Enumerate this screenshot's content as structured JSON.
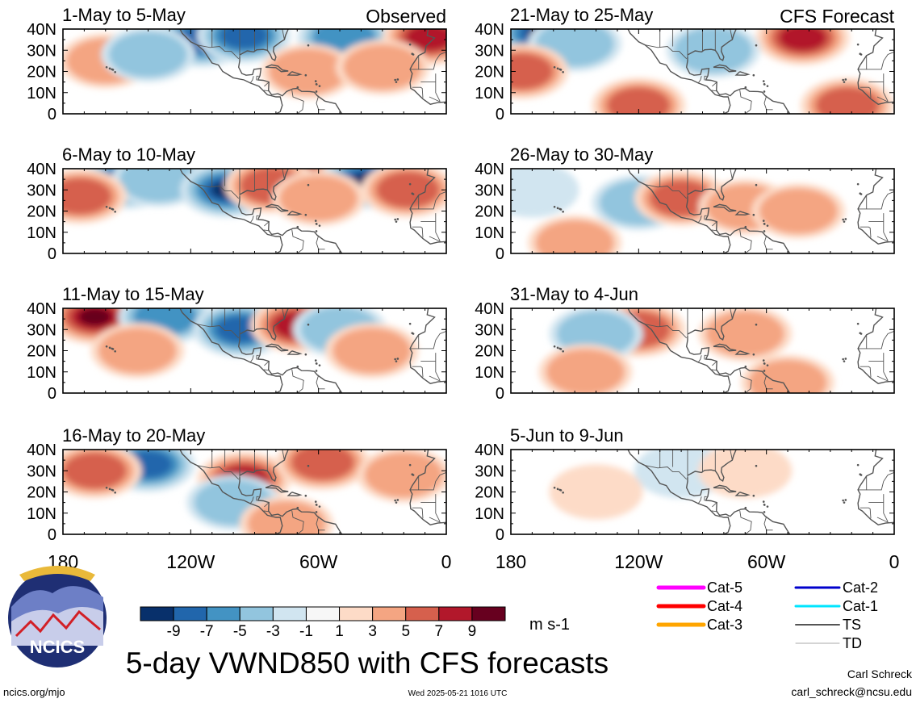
{
  "title": "5-day VWND850 with CFS forecasts",
  "unit": "m s-1",
  "logo_text": "NCICS",
  "footer": {
    "left": "ncics.org/mjo",
    "center": "Wed 2025-05-21 1016 UTC",
    "author": "Carl Schreck",
    "email": "carl_schreck@ncsu.edu"
  },
  "columns": {
    "left_tag": "Observed",
    "right_tag": "CFS Forecast"
  },
  "colors": {
    "land_outline": "#555555",
    "background": "#ffffff",
    "frame": "#000000"
  },
  "legend": {
    "items": [
      {
        "label": "Cat-5",
        "color": "#ff00ff",
        "weight": 5
      },
      {
        "label": "Cat-4",
        "color": "#ff0000",
        "weight": 5
      },
      {
        "label": "Cat-3",
        "color": "#ffa500",
        "weight": 5
      },
      {
        "label": "Cat-2",
        "color": "#0000cc",
        "weight": 3
      },
      {
        "label": "Cat-1",
        "color": "#00e5ff",
        "weight": 3
      },
      {
        "label": "TS",
        "color": "#555555",
        "weight": 2
      },
      {
        "label": "TD",
        "color": "#aaaaaa",
        "weight": 1
      }
    ]
  },
  "chart_data": {
    "type": "heatmap",
    "variable": "VWND850",
    "x_ticks": [
      "180",
      "120W",
      "60W",
      "0"
    ],
    "y_ticks": [
      "0",
      "10N",
      "20N",
      "30N",
      "40N"
    ],
    "xlim_lon": [
      -180,
      0
    ],
    "ylim_lat": [
      0,
      40
    ],
    "colorbar": {
      "levels": [
        -9,
        -7,
        -5,
        -3,
        -1,
        1,
        3,
        5,
        7,
        9
      ],
      "tick_labels": [
        "-9",
        "-7",
        "-5",
        "-3",
        "-1",
        "1",
        "3",
        "5",
        "7",
        "9"
      ],
      "colors": [
        "#08306b",
        "#2166ac",
        "#4393c3",
        "#92c5de",
        "#d1e5f0",
        "#f7f7f7",
        "#fddbc7",
        "#f4a582",
        "#d6604d",
        "#b2182b",
        "#67001f"
      ]
    },
    "panels": [
      {
        "label": "1-May to 5-May",
        "kind": "observed",
        "anomalies": [
          {
            "lon": -115,
            "lat": 35,
            "v": -7
          },
          {
            "lon": -95,
            "lat": 37,
            "v": -7
          },
          {
            "lon": -48,
            "lat": 36,
            "v": -5
          },
          {
            "lon": -8,
            "lat": 36,
            "v": 7
          },
          {
            "lon": -160,
            "lat": 25,
            "v": 3
          },
          {
            "lon": -140,
            "lat": 28,
            "v": -3
          },
          {
            "lon": -65,
            "lat": 20,
            "v": 3
          },
          {
            "lon": -30,
            "lat": 22,
            "v": 3
          }
        ]
      },
      {
        "label": "6-May to 10-May",
        "kind": "observed",
        "anomalies": [
          {
            "lon": -150,
            "lat": 34,
            "v": -7
          },
          {
            "lon": -135,
            "lat": 35,
            "v": -3
          },
          {
            "lon": -103,
            "lat": 30,
            "v": -9
          },
          {
            "lon": -75,
            "lat": 38,
            "v": 9
          },
          {
            "lon": -82,
            "lat": 32,
            "v": 5
          },
          {
            "lon": -38,
            "lat": 34,
            "v": -9
          },
          {
            "lon": -18,
            "lat": 30,
            "v": 5
          },
          {
            "lon": -172,
            "lat": 27,
            "v": 5
          },
          {
            "lon": -60,
            "lat": 26,
            "v": 3
          }
        ]
      },
      {
        "label": "11-May to 15-May",
        "kind": "observed",
        "anomalies": [
          {
            "lon": -165,
            "lat": 36,
            "v": 9
          },
          {
            "lon": -132,
            "lat": 36,
            "v": -5
          },
          {
            "lon": -97,
            "lat": 30,
            "v": -7
          },
          {
            "lon": -70,
            "lat": 32,
            "v": 7
          },
          {
            "lon": -50,
            "lat": 30,
            "v": -3
          },
          {
            "lon": -145,
            "lat": 20,
            "v": 3
          },
          {
            "lon": -35,
            "lat": 20,
            "v": 3
          }
        ]
      },
      {
        "label": "16-May to 20-May",
        "kind": "observed",
        "anomalies": [
          {
            "lon": -140,
            "lat": 33,
            "v": -7
          },
          {
            "lon": -95,
            "lat": 26,
            "v": 7
          },
          {
            "lon": -58,
            "lat": 34,
            "v": 5
          },
          {
            "lon": -100,
            "lat": 15,
            "v": -3
          },
          {
            "lon": -165,
            "lat": 30,
            "v": 5
          },
          {
            "lon": -20,
            "lat": 28,
            "v": 3
          },
          {
            "lon": -75,
            "lat": 5,
            "v": 3
          }
        ]
      },
      {
        "label": "21-May to 25-May",
        "kind": "forecast",
        "anomalies": [
          {
            "lon": -165,
            "lat": 38,
            "v": -9
          },
          {
            "lon": -150,
            "lat": 33,
            "v": -3
          },
          {
            "lon": -43,
            "lat": 36,
            "v": 7
          },
          {
            "lon": -175,
            "lat": 20,
            "v": 5
          },
          {
            "lon": -120,
            "lat": 4,
            "v": 5
          },
          {
            "lon": -85,
            "lat": 30,
            "v": -3
          },
          {
            "lon": -22,
            "lat": 4,
            "v": 5
          }
        ]
      },
      {
        "label": "26-May to 30-May",
        "kind": "forecast",
        "anomalies": [
          {
            "lon": -120,
            "lat": 24,
            "v": -3
          },
          {
            "lon": -100,
            "lat": 26,
            "v": 5
          },
          {
            "lon": -70,
            "lat": 22,
            "v": 3
          },
          {
            "lon": -150,
            "lat": 5,
            "v": 3
          },
          {
            "lon": -45,
            "lat": 20,
            "v": 3
          },
          {
            "lon": -170,
            "lat": 30,
            "v": -1
          }
        ]
      },
      {
        "label": "31-May to 4-Jun",
        "kind": "forecast",
        "anomalies": [
          {
            "lon": -120,
            "lat": 30,
            "v": 5
          },
          {
            "lon": -140,
            "lat": 28,
            "v": -3
          },
          {
            "lon": -70,
            "lat": 28,
            "v": 3
          },
          {
            "lon": -145,
            "lat": 10,
            "v": 3
          },
          {
            "lon": -50,
            "lat": 5,
            "v": 3
          }
        ]
      },
      {
        "label": "5-Jun to 9-Jun",
        "kind": "forecast",
        "anomalies": [
          {
            "lon": -100,
            "lat": 30,
            "v": -1
          },
          {
            "lon": -70,
            "lat": 30,
            "v": 1
          },
          {
            "lon": -140,
            "lat": 20,
            "v": 1
          }
        ]
      }
    ]
  }
}
